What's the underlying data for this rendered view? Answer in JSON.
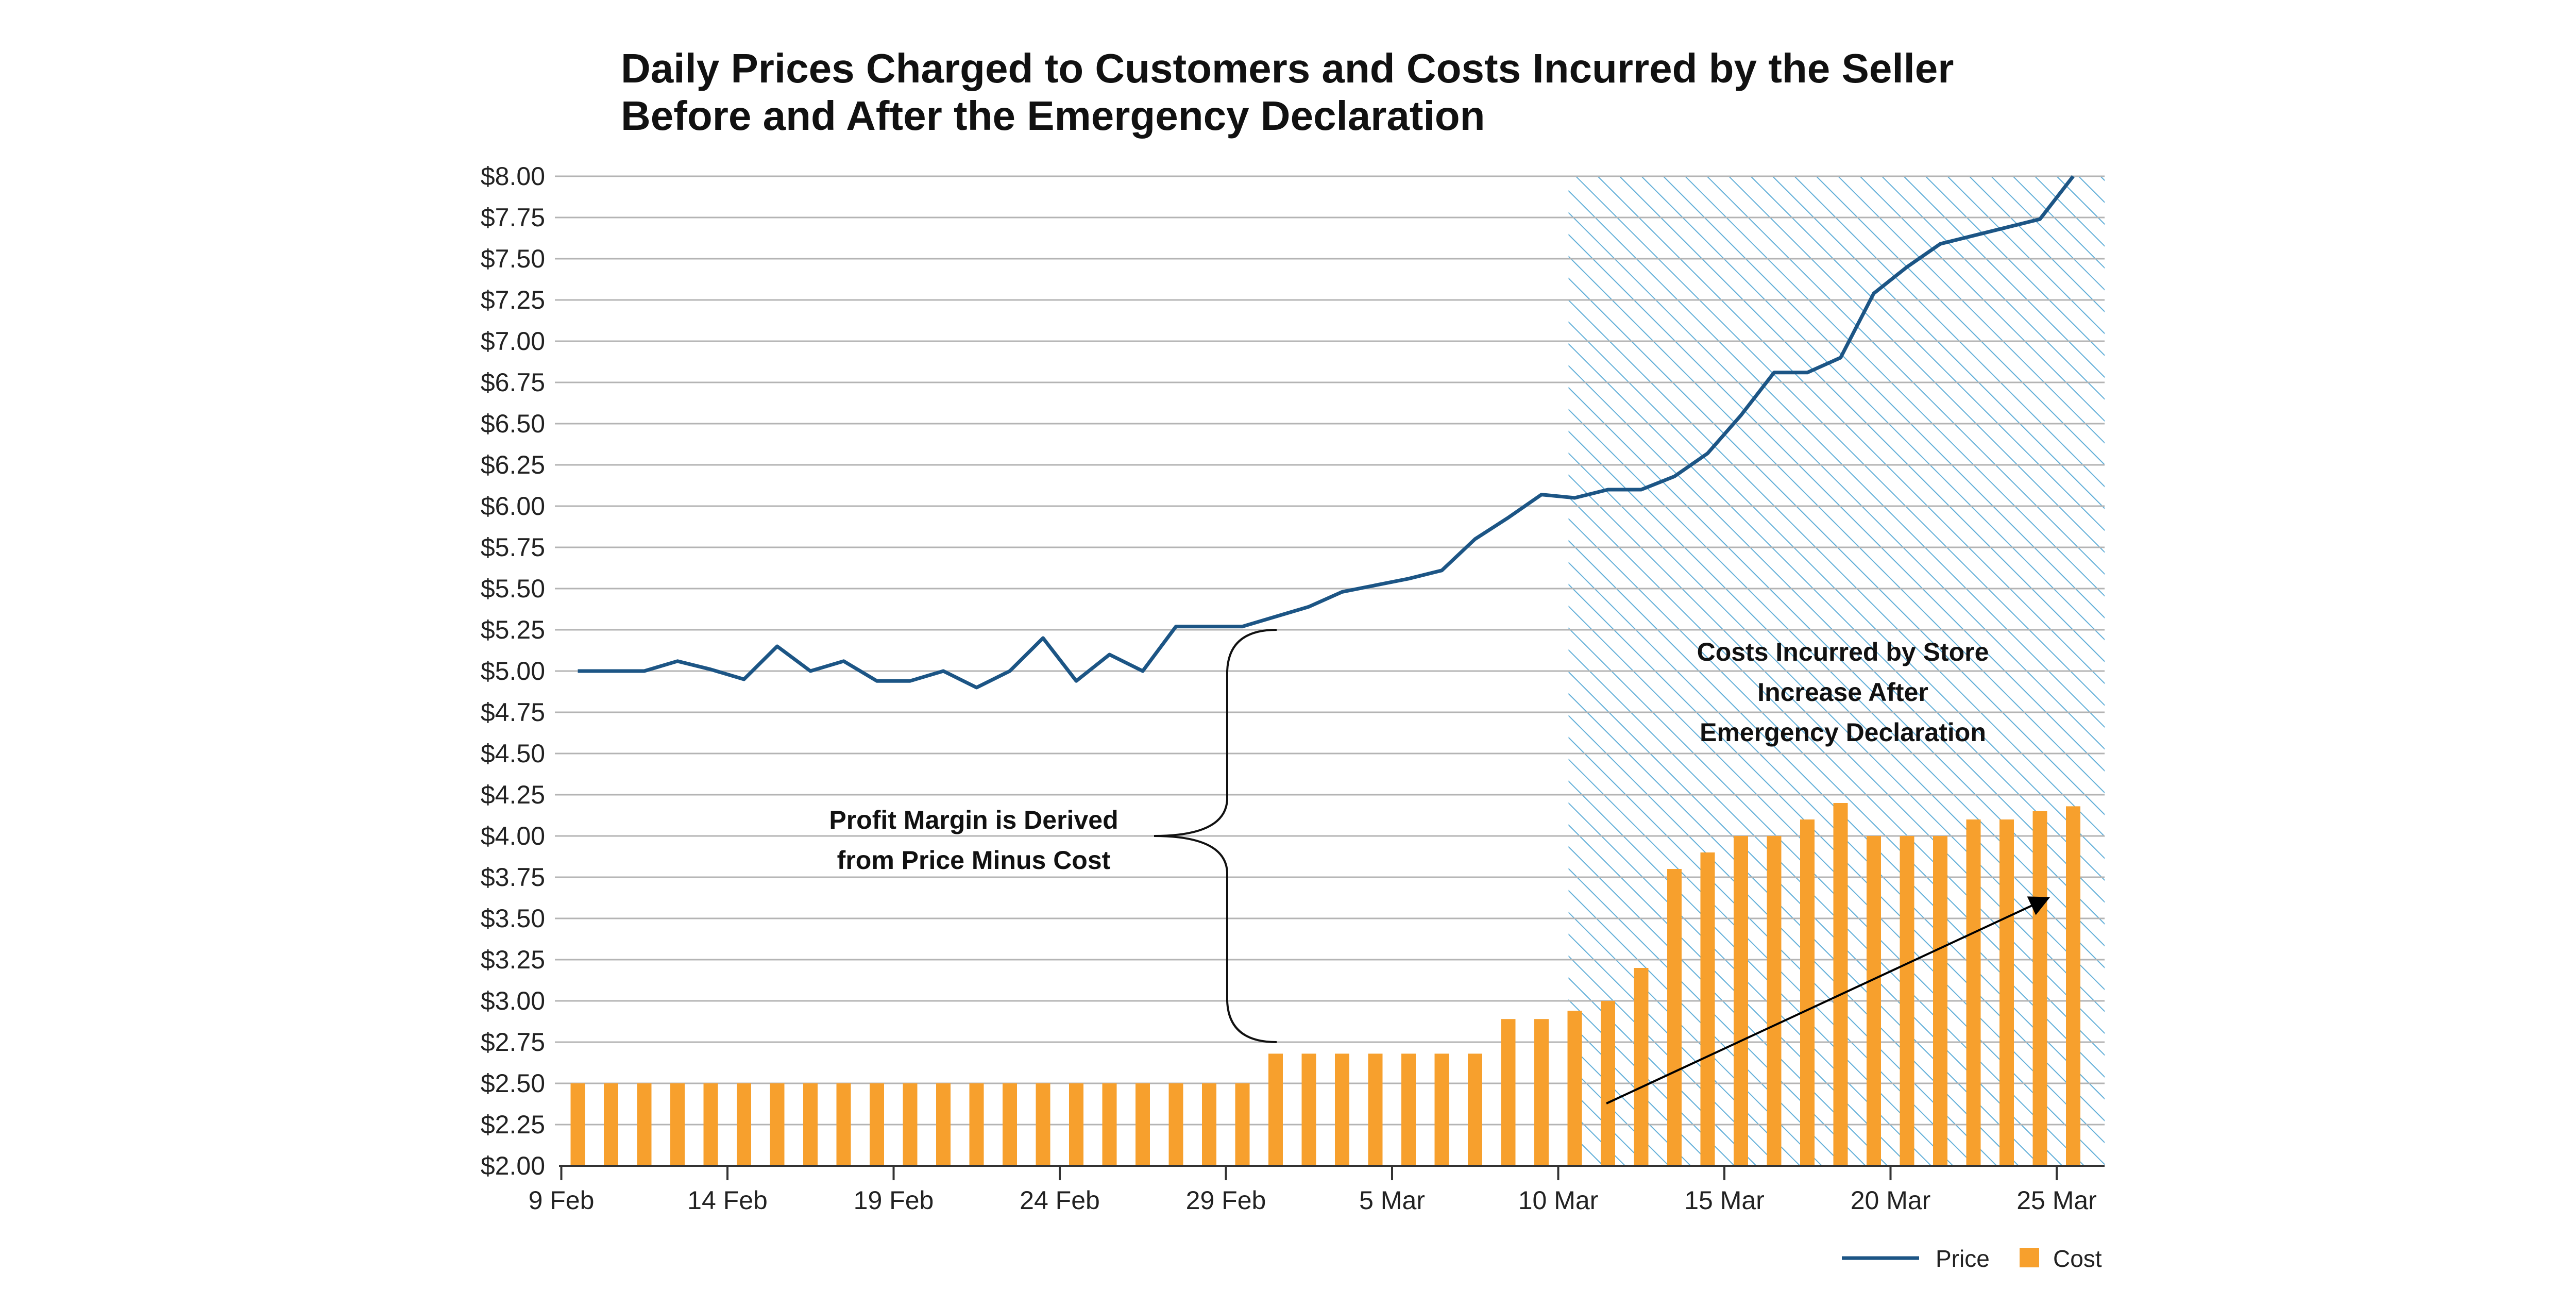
{
  "chart_data": {
    "type": "bar+line",
    "title_lines": [
      "Daily Prices Charged to Customers and Costs Incurred by the Seller",
      "Before and After the Emergency Declaration"
    ],
    "y_axis": {
      "min": 2.0,
      "max": 8.0,
      "step": 0.25,
      "tick_labels": [
        "$2.00",
        "$2.25",
        "$2.50",
        "$2.75",
        "$3.00",
        "$3.25",
        "$3.50",
        "$3.75",
        "$4.00",
        "$4.25",
        "$4.50",
        "$4.75",
        "$5.00",
        "$5.25",
        "$5.50",
        "$5.75",
        "$6.00",
        "$6.25",
        "$6.50",
        "$6.75",
        "$7.00",
        "$7.25",
        "$7.50",
        "$7.75",
        "$8.00"
      ]
    },
    "x_axis": {
      "tick_labels": [
        "9 Feb",
        "14 Feb",
        "19 Feb",
        "24 Feb",
        "29 Feb",
        "5 Mar",
        "10 Mar",
        "15 Mar",
        "20 Mar",
        "25 Mar"
      ],
      "tick_day_index": [
        0,
        5,
        10,
        15,
        20,
        25,
        30,
        35,
        40,
        45
      ]
    },
    "series": [
      {
        "name": "Cost",
        "type": "bar",
        "color": "#f7a02d",
        "values": [
          2.5,
          2.5,
          2.5,
          2.5,
          2.5,
          2.5,
          2.5,
          2.5,
          2.5,
          2.5,
          2.5,
          2.5,
          2.5,
          2.5,
          2.5,
          2.5,
          2.5,
          2.5,
          2.5,
          2.5,
          2.5,
          2.68,
          2.68,
          2.68,
          2.68,
          2.68,
          2.68,
          2.68,
          2.89,
          2.89,
          2.94,
          3.0,
          3.2,
          3.8,
          3.9,
          4.0,
          4.0,
          4.1,
          4.2,
          4.0,
          4.0,
          4.0,
          4.1,
          4.1,
          4.15,
          4.18
        ]
      },
      {
        "name": "Price",
        "type": "line",
        "color": "#1c5585",
        "values": [
          5.0,
          5.0,
          5.0,
          5.06,
          5.01,
          4.95,
          5.15,
          5.0,
          5.06,
          4.94,
          4.94,
          5.0,
          4.9,
          5.0,
          5.2,
          4.94,
          5.1,
          5.0,
          5.27,
          5.27,
          5.27,
          5.33,
          5.39,
          5.48,
          5.52,
          5.56,
          5.61,
          5.8,
          5.93,
          6.07,
          6.05,
          6.1,
          6.1,
          6.18,
          6.32,
          6.55,
          6.81,
          6.81,
          6.9,
          7.29,
          7.45,
          7.59,
          7.64,
          7.69,
          7.74,
          8.0
        ]
      }
    ],
    "shaded_region": {
      "from_day_index": 30,
      "to_day_index": 46
    },
    "annotations": {
      "profit_margin": [
        "Profit Margin is Derived",
        "from Price Minus Cost"
      ],
      "costs_increase": [
        "Costs Incurred by Store",
        "Increase After",
        "Emergency Declaration"
      ]
    },
    "legend": [
      {
        "label": "Price",
        "kind": "line",
        "color": "#1c5585"
      },
      {
        "label": "Cost",
        "kind": "square",
        "color": "#f7a02d"
      }
    ],
    "colors": {
      "hatch": "#62afd8",
      "grid": "#b4b4b4",
      "axis": "#333333",
      "arrow": "#000000"
    }
  }
}
